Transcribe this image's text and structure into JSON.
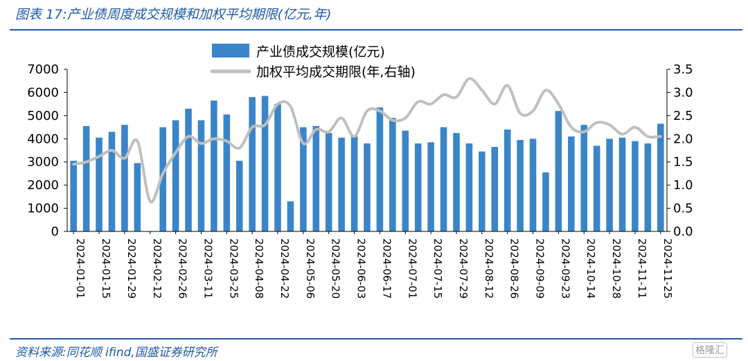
{
  "header": {
    "title": "图表 17:产业债周度成交规模和加权平均期限(亿元,年)"
  },
  "footer": {
    "source": "资料来源:同花顺 ifind,国盛证券研究所",
    "watermark": "格隆汇"
  },
  "colors": {
    "bar": "#3a85c9",
    "line": "#bfbfbf",
    "accent": "#1f5aa6"
  },
  "chart_data": {
    "type": "bar",
    "legend_placement": "top-center",
    "grid": false,
    "left_ylim": [
      0,
      7000
    ],
    "right_ylim": [
      0,
      3.5
    ],
    "left_ticks": [
      "0",
      "1000",
      "2000",
      "3000",
      "4000",
      "5000",
      "6000",
      "7000"
    ],
    "right_ticks": [
      "0.0",
      "0.5",
      "1.0",
      "1.5",
      "2.0",
      "2.5",
      "3.0",
      "3.5"
    ],
    "x_tick_labels": [
      "2024-01-01",
      "2024-01-15",
      "2024-01-29",
      "2024-02-12",
      "2024-02-26",
      "2024-03-11",
      "2024-03-25",
      "2024-04-08",
      "2024-04-22",
      "2024-05-06",
      "2024-05-20",
      "2024-06-03",
      "2024-06-17",
      "2024-07-01",
      "2024-07-15",
      "2024-07-29",
      "2024-08-12",
      "2024-08-26",
      "2024-09-09",
      "2024-09-23",
      "2024-10-14",
      "2024-10-28",
      "2024-11-11",
      "2024-11-25"
    ],
    "categories": [
      "2024-01-01",
      "2024-01-08",
      "2024-01-15",
      "2024-01-22",
      "2024-01-29",
      "2024-02-05",
      "2024-02-12",
      "2024-02-19",
      "2024-02-26",
      "2024-03-04",
      "2024-03-11",
      "2024-03-18",
      "2024-03-25",
      "2024-04-01",
      "2024-04-08",
      "2024-04-15",
      "2024-04-22",
      "2024-04-29",
      "2024-05-06",
      "2024-05-13",
      "2024-05-20",
      "2024-05-27",
      "2024-06-03",
      "2024-06-10",
      "2024-06-17",
      "2024-06-24",
      "2024-07-01",
      "2024-07-08",
      "2024-07-15",
      "2024-07-22",
      "2024-07-29",
      "2024-08-05",
      "2024-08-12",
      "2024-08-19",
      "2024-08-26",
      "2024-09-02",
      "2024-09-09",
      "2024-09-16",
      "2024-09-23",
      "2024-09-30",
      "2024-10-14",
      "2024-10-21",
      "2024-10-28",
      "2024-11-04",
      "2024-11-11",
      "2024-11-18",
      "2024-11-25"
    ],
    "series": [
      {
        "name": "产业债成交规模(亿元)",
        "type": "bar",
        "axis": "left",
        "values": [
          3050,
          4550,
          4050,
          4300,
          4600,
          2950,
          0,
          4500,
          4800,
          5300,
          4800,
          5650,
          5050,
          3050,
          5800,
          5850,
          5500,
          1300,
          4500,
          4550,
          4250,
          4050,
          4100,
          3800,
          5350,
          4900,
          4350,
          3800,
          3850,
          4500,
          4250,
          3800,
          3450,
          3650,
          4400,
          3950,
          4000,
          2550,
          5200,
          4100,
          4600,
          3700,
          4000,
          4050,
          3900,
          3800,
          4650
        ]
      },
      {
        "name": "加权平均成交期限(年,右轴)",
        "type": "line",
        "axis": "right",
        "values": [
          1.45,
          1.5,
          1.62,
          1.75,
          1.58,
          1.95,
          0.65,
          1.25,
          1.7,
          2.05,
          1.9,
          2.0,
          1.95,
          1.8,
          2.25,
          2.3,
          2.75,
          2.7,
          1.9,
          2.2,
          2.15,
          2.45,
          2.05,
          2.6,
          2.6,
          2.4,
          2.45,
          2.8,
          2.75,
          2.95,
          2.9,
          3.3,
          3.05,
          2.75,
          3.15,
          2.55,
          2.6,
          3.05,
          2.75,
          2.25,
          2.15,
          2.35,
          2.3,
          2.1,
          2.25,
          2.05,
          2.05
        ]
      }
    ]
  }
}
